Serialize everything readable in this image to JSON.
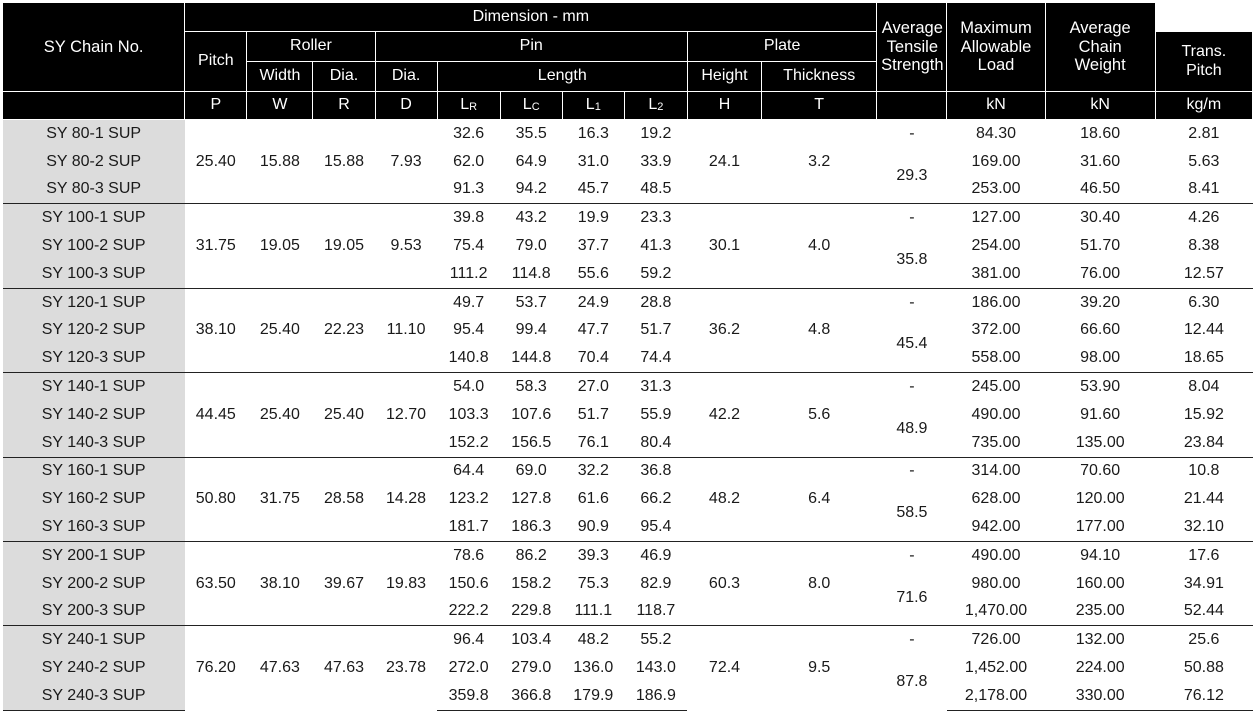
{
  "header": {
    "chain_no": "SY Chain No.",
    "dimension": "Dimension - mm",
    "pitch": "Pitch",
    "roller": "Roller",
    "pin": "Pin",
    "plate": "Plate",
    "trans_pitch": "Trans. Pitch",
    "tensile": "Average Tensile Strength",
    "max_load": "Maximum Allowable Load",
    "weight": "Average Chain Weight",
    "width": "Width",
    "dia": "Dia.",
    "pin_dia": "Dia.",
    "length": "Length",
    "height": "Height",
    "thickness": "Thickness",
    "sym_p": "P",
    "sym_w": "W",
    "sym_r": "R",
    "sym_d": "D",
    "sym_lr_main": "L",
    "sym_lr_sub": "R",
    "sym_lc_main": "L",
    "sym_lc_sub": "C",
    "sym_l1_main": "L",
    "sym_l1_sub": "1",
    "sym_l2_main": "L",
    "sym_l2_sub": "2",
    "sym_h": "H",
    "sym_t": "T",
    "unit_tensile": "kN",
    "unit_load": "kN",
    "unit_weight": "kg/m"
  },
  "groups": [
    {
      "pitch": "25.40",
      "width": "15.88",
      "dia": "15.88",
      "pin_dia": "7.93",
      "height": "24.1",
      "thickness": "3.2",
      "trans_pitch": "29.3",
      "rows": [
        {
          "name": "SY 80-1 SUP",
          "lr": "32.6",
          "lc": "35.5",
          "l1": "16.3",
          "l2": "19.2",
          "trans": "-",
          "tensile": "84.30",
          "load": "18.60",
          "weight": "2.81"
        },
        {
          "name": "SY 80-2 SUP",
          "lr": "62.0",
          "lc": "64.9",
          "l1": "31.0",
          "l2": "33.9",
          "tensile": "169.00",
          "load": "31.60",
          "weight": "5.63"
        },
        {
          "name": "SY 80-3 SUP",
          "lr": "91.3",
          "lc": "94.2",
          "l1": "45.7",
          "l2": "48.5",
          "tensile": "253.00",
          "load": "46.50",
          "weight": "8.41"
        }
      ]
    },
    {
      "pitch": "31.75",
      "width": "19.05",
      "dia": "19.05",
      "pin_dia": "9.53",
      "height": "30.1",
      "thickness": "4.0",
      "trans_pitch": "35.8",
      "rows": [
        {
          "name": "SY 100-1 SUP",
          "lr": "39.8",
          "lc": "43.2",
          "l1": "19.9",
          "l2": "23.3",
          "trans": "-",
          "tensile": "127.00",
          "load": "30.40",
          "weight": "4.26"
        },
        {
          "name": "SY 100-2 SUP",
          "lr": "75.4",
          "lc": "79.0",
          "l1": "37.7",
          "l2": "41.3",
          "tensile": "254.00",
          "load": "51.70",
          "weight": "8.38"
        },
        {
          "name": "SY 100-3 SUP",
          "lr": "111.2",
          "lc": "114.8",
          "l1": "55.6",
          "l2": "59.2",
          "tensile": "381.00",
          "load": "76.00",
          "weight": "12.57"
        }
      ]
    },
    {
      "pitch": "38.10",
      "width": "25.40",
      "dia": "22.23",
      "pin_dia": "11.10",
      "height": "36.2",
      "thickness": "4.8",
      "trans_pitch": "45.4",
      "rows": [
        {
          "name": "SY 120-1 SUP",
          "lr": "49.7",
          "lc": "53.7",
          "l1": "24.9",
          "l2": "28.8",
          "trans": "-",
          "tensile": "186.00",
          "load": "39.20",
          "weight": "6.30"
        },
        {
          "name": "SY 120-2 SUP",
          "lr": "95.4",
          "lc": "99.4",
          "l1": "47.7",
          "l2": "51.7",
          "tensile": "372.00",
          "load": "66.60",
          "weight": "12.44"
        },
        {
          "name": "SY 120-3 SUP",
          "lr": "140.8",
          "lc": "144.8",
          "l1": "70.4",
          "l2": "74.4",
          "tensile": "558.00",
          "load": "98.00",
          "weight": "18.65"
        }
      ]
    },
    {
      "pitch": "44.45",
      "width": "25.40",
      "dia": "25.40",
      "pin_dia": "12.70",
      "height": "42.2",
      "thickness": "5.6",
      "trans_pitch": "48.9",
      "rows": [
        {
          "name": "SY 140-1 SUP",
          "lr": "54.0",
          "lc": "58.3",
          "l1": "27.0",
          "l2": "31.3",
          "trans": "-",
          "tensile": "245.00",
          "load": "53.90",
          "weight": "8.04"
        },
        {
          "name": "SY 140-2 SUP",
          "lr": "103.3",
          "lc": "107.6",
          "l1": "51.7",
          "l2": "55.9",
          "tensile": "490.00",
          "load": "91.60",
          "weight": "15.92"
        },
        {
          "name": "SY 140-3 SUP",
          "lr": "152.2",
          "lc": "156.5",
          "l1": "76.1",
          "l2": "80.4",
          "tensile": "735.00",
          "load": "135.00",
          "weight": "23.84"
        }
      ]
    },
    {
      "pitch": "50.80",
      "width": "31.75",
      "dia": "28.58",
      "pin_dia": "14.28",
      "height": "48.2",
      "thickness": "6.4",
      "trans_pitch": "58.5",
      "rows": [
        {
          "name": "SY 160-1 SUP",
          "lr": "64.4",
          "lc": "69.0",
          "l1": "32.2",
          "l2": "36.8",
          "trans": "-",
          "tensile": "314.00",
          "load": "70.60",
          "weight": "10.8"
        },
        {
          "name": "SY 160-2 SUP",
          "lr": "123.2",
          "lc": "127.8",
          "l1": "61.6",
          "l2": "66.2",
          "tensile": "628.00",
          "load": "120.00",
          "weight": "21.44"
        },
        {
          "name": "SY 160-3 SUP",
          "lr": "181.7",
          "lc": "186.3",
          "l1": "90.9",
          "l2": "95.4",
          "tensile": "942.00",
          "load": "177.00",
          "weight": "32.10"
        }
      ]
    },
    {
      "pitch": "63.50",
      "width": "38.10",
      "dia": "39.67",
      "pin_dia": "19.83",
      "height": "60.3",
      "thickness": "8.0",
      "trans_pitch": "71.6",
      "rows": [
        {
          "name": "SY 200-1 SUP",
          "lr": "78.6",
          "lc": "86.2",
          "l1": "39.3",
          "l2": "46.9",
          "trans": "-",
          "tensile": "490.00",
          "load": "94.10",
          "weight": "17.6"
        },
        {
          "name": "SY 200-2 SUP",
          "lr": "150.6",
          "lc": "158.2",
          "l1": "75.3",
          "l2": "82.9",
          "tensile": "980.00",
          "load": "160.00",
          "weight": "34.91"
        },
        {
          "name": "SY 200-3 SUP",
          "lr": "222.2",
          "lc": "229.8",
          "l1": "111.1",
          "l2": "118.7",
          "tensile": "1,470.00",
          "load": "235.00",
          "weight": "52.44"
        }
      ]
    },
    {
      "pitch": "76.20",
      "width": "47.63",
      "dia": "47.63",
      "pin_dia": "23.78",
      "height": "72.4",
      "thickness": "9.5",
      "trans_pitch": "87.8",
      "rows": [
        {
          "name": "SY 240-1 SUP",
          "lr": "96.4",
          "lc": "103.4",
          "l1": "48.2",
          "l2": "55.2",
          "trans": "-",
          "tensile": "726.00",
          "load": "132.00",
          "weight": "25.6"
        },
        {
          "name": "SY 240-2 SUP",
          "lr": "272.0",
          "lc": "279.0",
          "l1": "136.0",
          "l2": "143.0",
          "tensile": "1,452.00",
          "load": "224.00",
          "weight": "50.88"
        },
        {
          "name": "SY 240-3 SUP",
          "lr": "359.8",
          "lc": "366.8",
          "l1": "179.9",
          "l2": "186.9",
          "tensile": "2,178.00",
          "load": "330.00",
          "weight": "76.12"
        }
      ]
    }
  ]
}
